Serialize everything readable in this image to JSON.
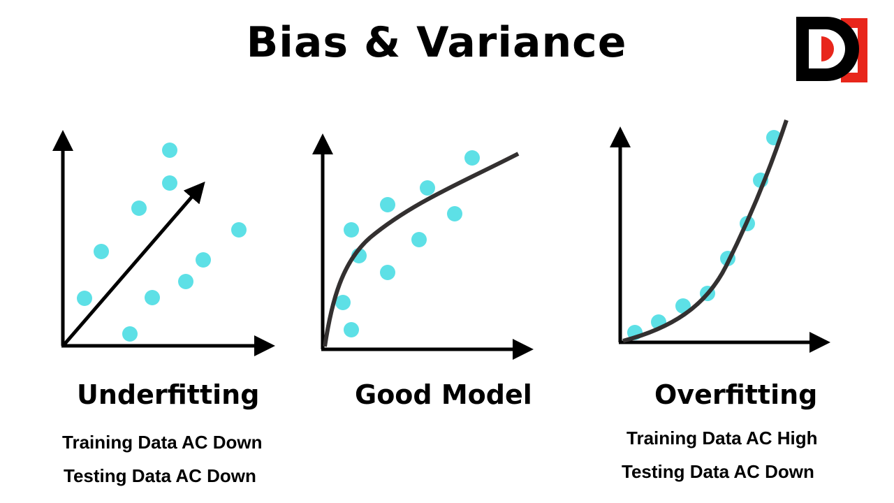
{
  "title": "Bias & Variance",
  "logo": {
    "name": "D-brand-logo"
  },
  "colors": {
    "point": "#5de0e6",
    "curve": "#333030",
    "axis": "#000000",
    "logo_red": "#e8261b"
  },
  "panels": [
    {
      "id": "underfitting",
      "heading": "Underfitting",
      "lines": [
        "Training Data AC Down",
        "Testing Data AC Down"
      ],
      "fit": "straight-line"
    },
    {
      "id": "good-model",
      "heading": "Good Model",
      "lines": [],
      "fit": "concave-curve"
    },
    {
      "id": "overfitting",
      "heading": "Overfitting",
      "lines": [
        "Training Data AC High",
        "Testing Data AC Down"
      ],
      "fit": "convex-curve"
    }
  ]
}
